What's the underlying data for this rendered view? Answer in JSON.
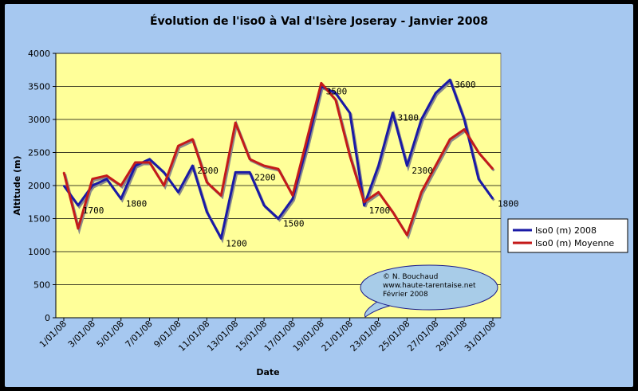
{
  "chart_data": {
    "type": "line",
    "title": "Évolution de l'iso0 à Val d'Isère Joseray - Janvier 2008",
    "xlabel": "Date",
    "ylabel": "Altitude (m)",
    "ylim": [
      0,
      4000
    ],
    "y_ticks": [
      "0",
      "500",
      "1000",
      "1500",
      "2000",
      "2500",
      "3000",
      "3500",
      "4000"
    ],
    "x": [
      "1/01/08",
      "2/01/08",
      "3/01/08",
      "4/01/08",
      "5/01/08",
      "6/01/08",
      "7/01/08",
      "8/01/08",
      "9/01/08",
      "10/01/08",
      "11/01/08",
      "12/01/08",
      "13/01/08",
      "14/01/08",
      "15/01/08",
      "16/01/08",
      "17/01/08",
      "18/01/08",
      "19/01/08",
      "20/01/08",
      "21/01/08",
      "22/01/08",
      "23/01/08",
      "24/01/08",
      "25/01/08",
      "26/01/08",
      "27/01/08",
      "28/01/08",
      "29/01/08",
      "30/01/08",
      "31/01/08"
    ],
    "x_tick_labels": [
      "1/01/08",
      "3/01/08",
      "5/01/08",
      "7/01/08",
      "9/01/08",
      "11/01/08",
      "13/01/08",
      "15/01/08",
      "17/01/08",
      "19/01/08",
      "21/01/08",
      "23/01/08",
      "25/01/08",
      "27/01/08",
      "29/01/08",
      "31/01/08"
    ],
    "grid": true,
    "legend_position": "right",
    "series": [
      {
        "name": "Iso0 (m) 2008",
        "color": "#1a1aa6",
        "values": [
          2000,
          1700,
          2000,
          2100,
          1800,
          2300,
          2400,
          2200,
          1900,
          2300,
          1600,
          1200,
          2200,
          2200,
          1700,
          1500,
          1800,
          2600,
          3500,
          3400,
          3100,
          1700,
          2300,
          3100,
          2300,
          3000,
          3400,
          3600,
          3000,
          2100,
          1800
        ]
      },
      {
        "name": "Iso0 (m) Moyenne",
        "color": "#c41a1a",
        "values": [
          2200,
          1350,
          2100,
          2150,
          2000,
          2350,
          2350,
          2000,
          2600,
          2700,
          2050,
          1850,
          2950,
          2400,
          2300,
          2250,
          1850,
          2700,
          3550,
          3300,
          2450,
          1750,
          1900,
          1600,
          1250,
          1900,
          2300,
          2700,
          2850,
          2500,
          2250
        ]
      }
    ],
    "annotations": [
      {
        "text": "1700",
        "x": "2/01/08",
        "y": 1700
      },
      {
        "text": "1800",
        "x": "5/01/08",
        "y": 1800
      },
      {
        "text": "2300",
        "x": "10/01/08",
        "y": 2300
      },
      {
        "text": "1200",
        "x": "12/01/08",
        "y": 1200
      },
      {
        "text": "2200",
        "x": "14/01/08",
        "y": 2200
      },
      {
        "text": "1500",
        "x": "16/01/08",
        "y": 1500
      },
      {
        "text": "3500",
        "x": "19/01/08",
        "y": 3500
      },
      {
        "text": "1700",
        "x": "22/01/08",
        "y": 1700
      },
      {
        "text": "3100",
        "x": "24/01/08",
        "y": 3100
      },
      {
        "text": "2300",
        "x": "25/01/08",
        "y": 2300
      },
      {
        "text": "3600",
        "x": "28/01/08",
        "y": 3600
      },
      {
        "text": "1800",
        "x": "31/01/08",
        "y": 1800
      }
    ]
  },
  "callout": {
    "lines": [
      "© N. Bouchaud",
      "www.haute-tarentaise.net",
      "Février 2008"
    ],
    "fill": "#a8cce8"
  },
  "colors": {
    "plot_bg": "#ffff99",
    "frame_bg": "#a6c8f0"
  }
}
